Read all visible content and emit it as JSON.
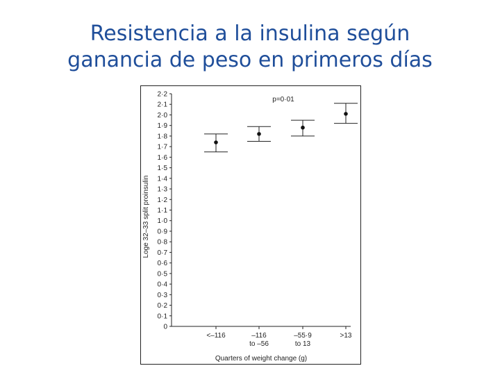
{
  "slide": {
    "title_line1": "Resistencia a la insulina según",
    "title_line2": "ganancia de peso en primeros días"
  },
  "chart_data": {
    "type": "scatter",
    "error_bars": true,
    "annotation": "p=0·01",
    "xlabel": "Quarters of weight change (g)",
    "ylabel": "Loge 32–33 split proinsulin",
    "ylim": [
      0,
      2.2
    ],
    "yticks": [
      "0",
      "0·1",
      "0·2",
      "0·3",
      "0·4",
      "0·5",
      "0·6",
      "0·7",
      "0·8",
      "0·9",
      "1·0",
      "1·1",
      "1·2",
      "1·3",
      "1·4",
      "1·5",
      "1·6",
      "1·7",
      "1·8",
      "1·9",
      "2·0",
      "2·1",
      "2·2"
    ],
    "categories": [
      [
        "<–116"
      ],
      [
        "–116",
        "to –56"
      ],
      [
        "–55·9",
        "to 13"
      ],
      [
        ">13"
      ]
    ],
    "points": [
      {
        "y": 1.74,
        "lo": 1.65,
        "hi": 1.82
      },
      {
        "y": 1.82,
        "lo": 1.75,
        "hi": 1.89
      },
      {
        "y": 1.88,
        "lo": 1.8,
        "hi": 1.95
      },
      {
        "y": 2.01,
        "lo": 1.92,
        "hi": 2.11
      }
    ],
    "grid": false,
    "legend": "none"
  }
}
